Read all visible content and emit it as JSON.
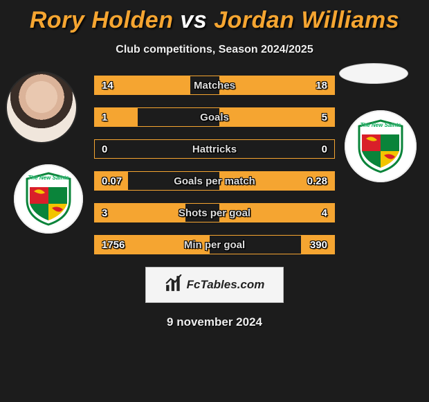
{
  "title_player1": "Rory Holden",
  "title_vs": "vs",
  "title_player2": "Jordan Williams",
  "title_color_p1": "#f5a531",
  "title_color_vs": "#ffffff",
  "title_color_p2": "#f5a531",
  "subtitle": "Club competitions, Season 2024/2025",
  "date": "9 november 2024",
  "watermark": "FcTables.com",
  "crest_name": "The New Saints",
  "colors": {
    "bar_border": "#f5a531",
    "bar_fill": "#f5a531",
    "background": "#1c1c1c",
    "text_light": "#dedede"
  },
  "bars": [
    {
      "label": "Matches",
      "left_val": "14",
      "right_val": "18",
      "left_pct": 40,
      "right_pct": 48
    },
    {
      "label": "Goals",
      "left_val": "1",
      "right_val": "5",
      "left_pct": 18,
      "right_pct": 48
    },
    {
      "label": "Hattricks",
      "left_val": "0",
      "right_val": "0",
      "left_pct": 0,
      "right_pct": 0
    },
    {
      "label": "Goals per match",
      "left_val": "0.07",
      "right_val": "0.28",
      "left_pct": 14,
      "right_pct": 48
    },
    {
      "label": "Shots per goal",
      "left_val": "3",
      "right_val": "4",
      "left_pct": 38,
      "right_pct": 48
    },
    {
      "label": "Min per goal",
      "left_val": "1756",
      "right_val": "390",
      "left_pct": 48,
      "right_pct": 14
    }
  ]
}
